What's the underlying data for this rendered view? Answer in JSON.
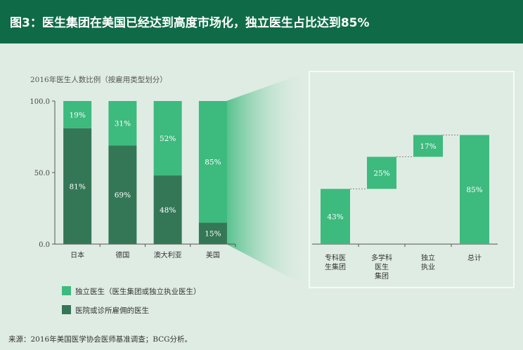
{
  "header": {
    "title": "图3：医生集团在美国已经达到高度市场化，独立医生占比达到85%"
  },
  "footer": {
    "source": "来源：2016年美国医学协会医师基准调查；BCG分析。"
  },
  "chart_data": [
    {
      "type": "bar",
      "stacked": true,
      "title": "2016年医生人数比例（按雇用类型划分）",
      "categories": [
        "日本",
        "德国",
        "澳大利亚",
        "美国"
      ],
      "ylim": [
        0,
        100
      ],
      "yticks": [
        "0.0",
        "50.0",
        "100.0"
      ],
      "series": [
        {
          "name": "医院或诊所雇佣的医生",
          "values": [
            81,
            69,
            48,
            15
          ],
          "labels": [
            "81%",
            "69%",
            "48%",
            "15%"
          ],
          "color": "#347756"
        },
        {
          "name": "独立医生（医生集团或独立执业医生）",
          "values": [
            19,
            31,
            52,
            85
          ],
          "labels": [
            "19%",
            "31%",
            "52%",
            "85%"
          ],
          "color": "#3dba7e"
        }
      ],
      "legend_position": "bottom-left"
    },
    {
      "type": "bar",
      "subtype": "waterfall",
      "categories": [
        "专科医\n生集团",
        "多学科\n医生\n集团",
        "独立\n执业",
        "总计"
      ],
      "values": [
        43,
        25,
        17,
        85
      ],
      "labels": [
        "43%",
        "25%",
        "17%",
        "85%"
      ],
      "ylim": [
        0,
        100
      ],
      "color": "#3dba7e"
    }
  ],
  "colors": {
    "header_bg": "#0f6b47",
    "panel_bg": "#dfece3",
    "dark_green": "#347756",
    "light_green": "#3dba7e"
  }
}
